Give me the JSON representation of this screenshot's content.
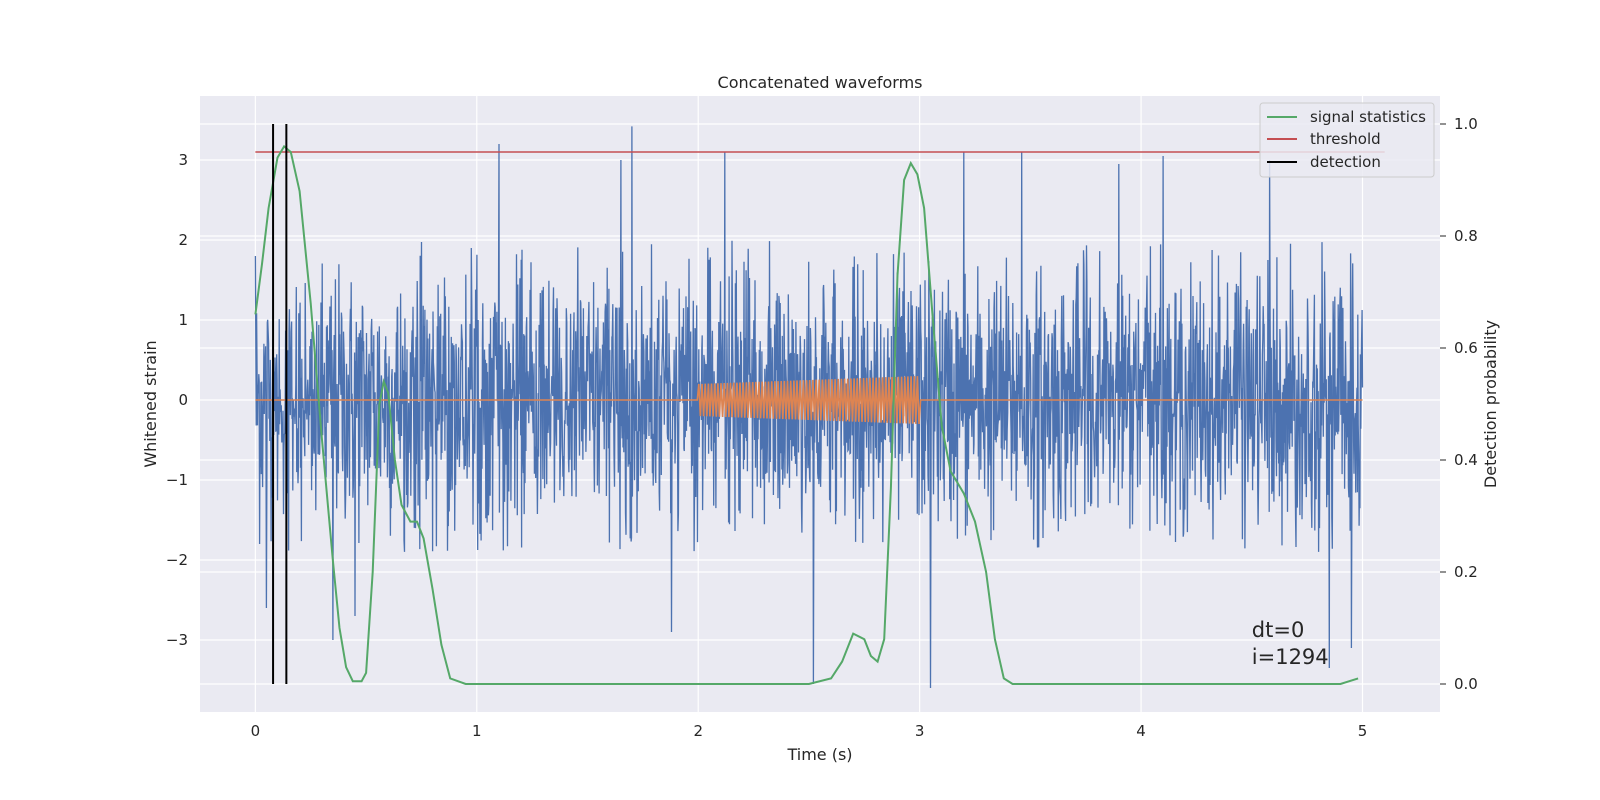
{
  "chart_data": {
    "type": "line",
    "title": "Concatenated waveforms",
    "xlabel": "Time (s)",
    "ylabel": "Whitened strain",
    "y2label": "Detection probability",
    "xlim": [
      -0.25,
      5.35
    ],
    "ylim": [
      -3.9,
      3.8
    ],
    "y2lim": [
      -0.05,
      1.05
    ],
    "xticks": [
      0,
      1,
      2,
      3,
      4,
      5
    ],
    "xtick_labels": [
      "0",
      "1",
      "2",
      "3",
      "4",
      "5"
    ],
    "yticks": [
      -3,
      -2,
      -1,
      0,
      1,
      2,
      3
    ],
    "ytick_labels": [
      "−3",
      "−2",
      "−1",
      "0",
      "1",
      "2",
      "3"
    ],
    "y2ticks": [
      0.0,
      0.2,
      0.4,
      0.6,
      0.8,
      1.0
    ],
    "y2tick_labels": [
      "0.0",
      "0.2",
      "0.4",
      "0.6",
      "0.8",
      "1.0"
    ],
    "grid": true,
    "legend_position": "top-right",
    "colors": {
      "background": "#eaeaf2",
      "grid": "#ffffff",
      "strain": "#4c72b0",
      "injection": "#dd8452",
      "signal_statistics": "#55a868",
      "threshold": "#c44e52",
      "detection": "#000000"
    },
    "series": [
      {
        "name": "",
        "axis": "left",
        "description_type": "noise",
        "x_range": [
          0,
          5
        ],
        "envelope_typical": [
          -1.9,
          2.0
        ],
        "peaks": [
          {
            "x": 0.0,
            "y": 1.8
          },
          {
            "x": 0.02,
            "y": -1.8
          },
          {
            "x": 0.05,
            "y": -2.6
          },
          {
            "x": 0.35,
            "y": -3.0
          },
          {
            "x": 0.45,
            "y": -2.7
          },
          {
            "x": 1.1,
            "y": 3.2
          },
          {
            "x": 1.7,
            "y": 3.42
          },
          {
            "x": 1.65,
            "y": 3.0
          },
          {
            "x": 1.88,
            "y": -2.9
          },
          {
            "x": 2.12,
            "y": 3.1
          },
          {
            "x": 2.52,
            "y": -3.55
          },
          {
            "x": 3.05,
            "y": -3.6
          },
          {
            "x": 3.2,
            "y": 3.1
          },
          {
            "x": 3.46,
            "y": 3.1
          },
          {
            "x": 3.9,
            "y": 2.95
          },
          {
            "x": 4.1,
            "y": 3.05
          },
          {
            "x": 4.58,
            "y": 3.0
          },
          {
            "x": 4.85,
            "y": -3.35
          },
          {
            "x": 4.95,
            "y": -3.1
          }
        ]
      },
      {
        "name": "",
        "axis": "left",
        "description_type": "injection",
        "x": [
          0,
          2,
          3,
          5
        ],
        "amplitude": [
          0,
          0.2,
          0.3,
          0
        ]
      },
      {
        "name": "signal statistics",
        "axis": "right",
        "x": [
          0,
          0.03,
          0.06,
          0.1,
          0.13,
          0.16,
          0.2,
          0.25,
          0.3,
          0.35,
          0.38,
          0.41,
          0.44,
          0.48,
          0.5,
          0.53,
          0.56,
          0.58,
          0.6,
          0.63,
          0.66,
          0.7,
          0.73,
          0.76,
          0.8,
          0.84,
          0.88,
          0.95,
          1.5,
          2.0,
          2.5,
          2.6,
          2.65,
          2.7,
          2.75,
          2.78,
          2.81,
          2.84,
          2.87,
          2.9,
          2.93,
          2.96,
          2.99,
          3.02,
          3.06,
          3.1,
          3.14,
          3.2,
          3.25,
          3.3,
          3.34,
          3.38,
          3.42,
          3.5,
          4.0,
          4.5,
          4.9,
          4.98
        ],
        "y": [
          0.66,
          0.75,
          0.85,
          0.94,
          0.96,
          0.95,
          0.88,
          0.68,
          0.44,
          0.22,
          0.1,
          0.03,
          0.005,
          0.005,
          0.02,
          0.2,
          0.5,
          0.54,
          0.52,
          0.4,
          0.32,
          0.29,
          0.29,
          0.26,
          0.17,
          0.07,
          0.01,
          0.0,
          0.0,
          0.0,
          0.0,
          0.01,
          0.04,
          0.09,
          0.08,
          0.05,
          0.04,
          0.08,
          0.35,
          0.73,
          0.9,
          0.93,
          0.91,
          0.85,
          0.65,
          0.46,
          0.38,
          0.34,
          0.29,
          0.2,
          0.08,
          0.01,
          0.0,
          0.0,
          0.0,
          0.0,
          0.0,
          0.01
        ]
      },
      {
        "name": "threshold",
        "axis": "right",
        "x": [
          0,
          5.1
        ],
        "y": [
          0.95,
          0.95
        ]
      },
      {
        "name": "detection",
        "axis": "right",
        "type": "vlines",
        "x": [
          0.08,
          0.14
        ],
        "ymin": -0.0,
        "ymax": 1.0
      }
    ],
    "annotations": [
      {
        "text": "dt=0",
        "x": 4.5,
        "y": -2.96
      },
      {
        "text": "i=1294",
        "x": 4.5,
        "y": -3.3
      }
    ]
  }
}
